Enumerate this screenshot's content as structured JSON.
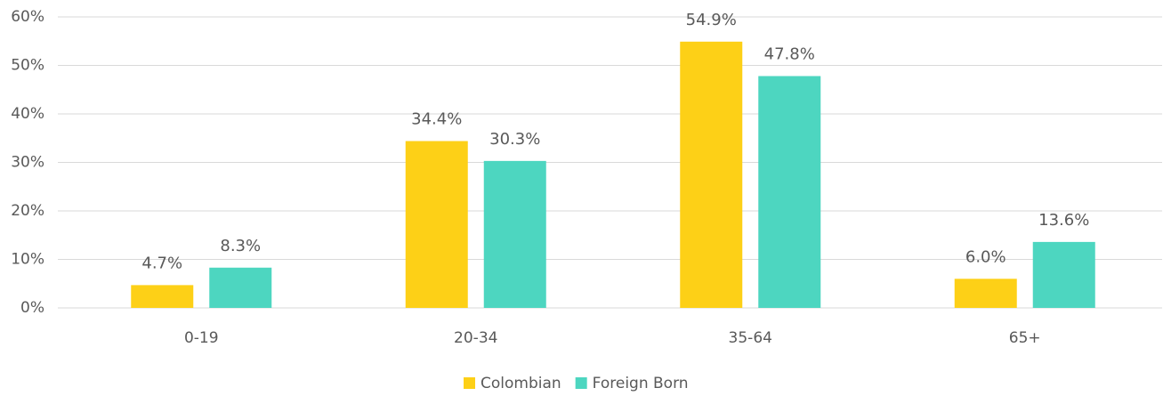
{
  "chart_data": {
    "type": "bar",
    "categories": [
      "0-19",
      "20-34",
      "35-64",
      "65+"
    ],
    "series": [
      {
        "name": "Colombian",
        "color": "#fdd017",
        "values": [
          4.7,
          34.4,
          54.9,
          6.0
        ],
        "value_labels": [
          "4.7%",
          "34.4%",
          "54.9%",
          "6.0%"
        ]
      },
      {
        "name": "Foreign Born",
        "color": "#4dd6c0",
        "values": [
          8.3,
          30.3,
          47.8,
          13.6
        ],
        "value_labels": [
          "8.3%",
          "30.3%",
          "47.8%",
          "13.6%"
        ]
      }
    ],
    "ylim": [
      0,
      60
    ],
    "yticks": [
      {
        "value": 0,
        "label": "0%"
      },
      {
        "value": 10,
        "label": "10%"
      },
      {
        "value": 20,
        "label": "20%"
      },
      {
        "value": 30,
        "label": "30%"
      },
      {
        "value": 40,
        "label": "40%"
      },
      {
        "value": 50,
        "label": "50%"
      },
      {
        "value": 60,
        "label": "60%"
      }
    ],
    "grid": true,
    "legend": "bottom"
  }
}
